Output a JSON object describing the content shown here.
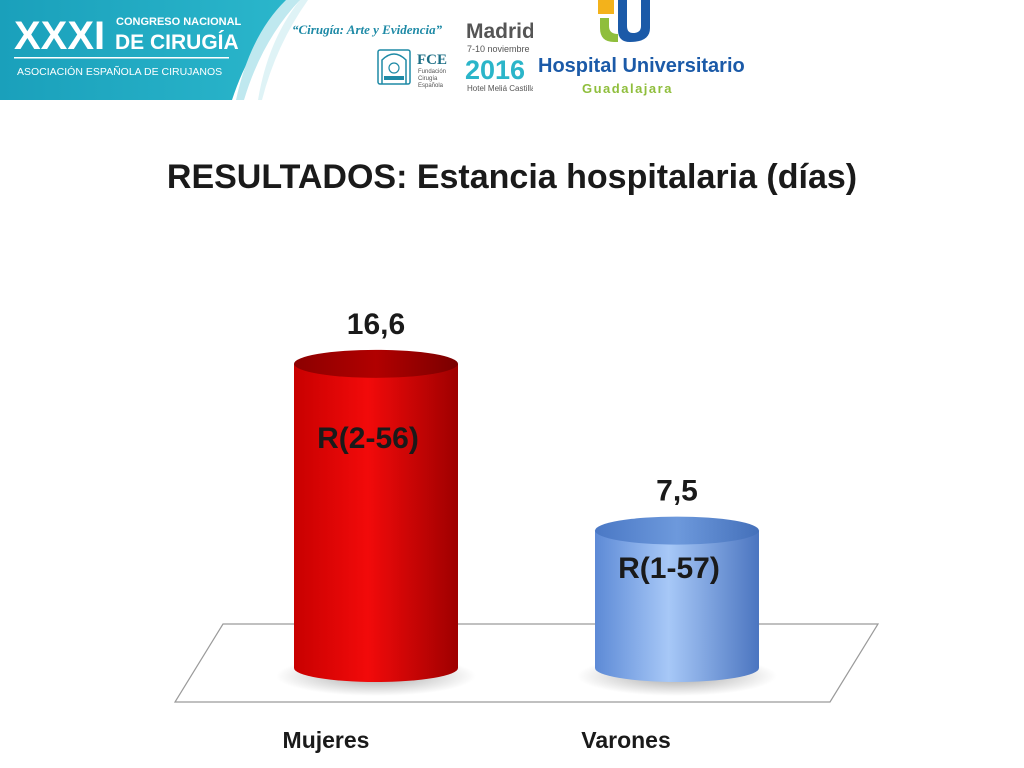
{
  "banner": {
    "edition": "XXXI",
    "congress_line1": "CONGRESO NACIONAL",
    "congress_line2": "DE CIRUGÍA",
    "association": "ASOCIACIÓN ESPAÑOLA DE CIRUJANOS",
    "slogan": "“Cirugía: Arte y Evidencia”",
    "fce_title": "FCE",
    "fce_sub1": "Fundación",
    "fce_sub2": "Cirugía",
    "fce_sub3": "Española",
    "city": "Madrid",
    "dates": "7-10 noviembre",
    "year": "2016",
    "venue": "Hotel Meliá Castilla",
    "hospital_line1": "Hospital Universitario",
    "hospital_line2": "Guadalajara",
    "colors": {
      "teal": "#1e9ab4",
      "hospital_blue": "#1b5aa8",
      "hospital_green": "#8fbe3c",
      "year_teal": "#2bb5c9"
    }
  },
  "title": "RESULTADOS: Estancia hospitalaria (días)",
  "chart_data": {
    "type": "bar",
    "style": "3d-cylinder",
    "categories": [
      "Mujeres",
      "Varones"
    ],
    "values": [
      16.6,
      7.5
    ],
    "value_labels": [
      "16,6",
      "7,5"
    ],
    "range_labels": [
      "R(2-56)",
      "R(1-57)"
    ],
    "colors": [
      "#d40000",
      "#6b9be0"
    ],
    "title": "",
    "xlabel": "",
    "ylabel": "",
    "ylim": [
      0,
      18.5
    ],
    "grid": false,
    "legend": "none"
  }
}
